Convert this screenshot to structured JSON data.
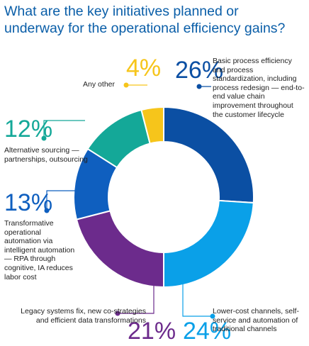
{
  "title": "What are the key initiatives planned or underway for the operational efficiency gains?",
  "chart_data": {
    "type": "pie",
    "donut": true,
    "unit": "%",
    "slices": [
      {
        "percent_label": "26%",
        "value": 26,
        "color": "#0b4fa3",
        "label": "Basic process efficiency and process standardization, including process redesign — end-to-end value chain improvement throughout the customer lifecycle"
      },
      {
        "percent_label": "24%",
        "value": 24,
        "color": "#0aa0e8",
        "label": "Lower-cost channels, self-service and automation of traditional channels"
      },
      {
        "percent_label": "21%",
        "value": 21,
        "color": "#6c2b8c",
        "label": "Legacy systems fix, new co-strategies and efficient data transformations"
      },
      {
        "percent_label": "13%",
        "value": 13,
        "color": "#0f5fbf",
        "label": "Transformative operational automation via intelligent automation — RPA through cognitive, IA reduces labor cost"
      },
      {
        "percent_label": "12%",
        "value": 12,
        "color": "#14a898",
        "label": "Alternative sourcing — partnerships, outsourcing"
      },
      {
        "percent_label": "4%",
        "value": 4,
        "color": "#f6c51b",
        "label": "Any other"
      }
    ]
  }
}
